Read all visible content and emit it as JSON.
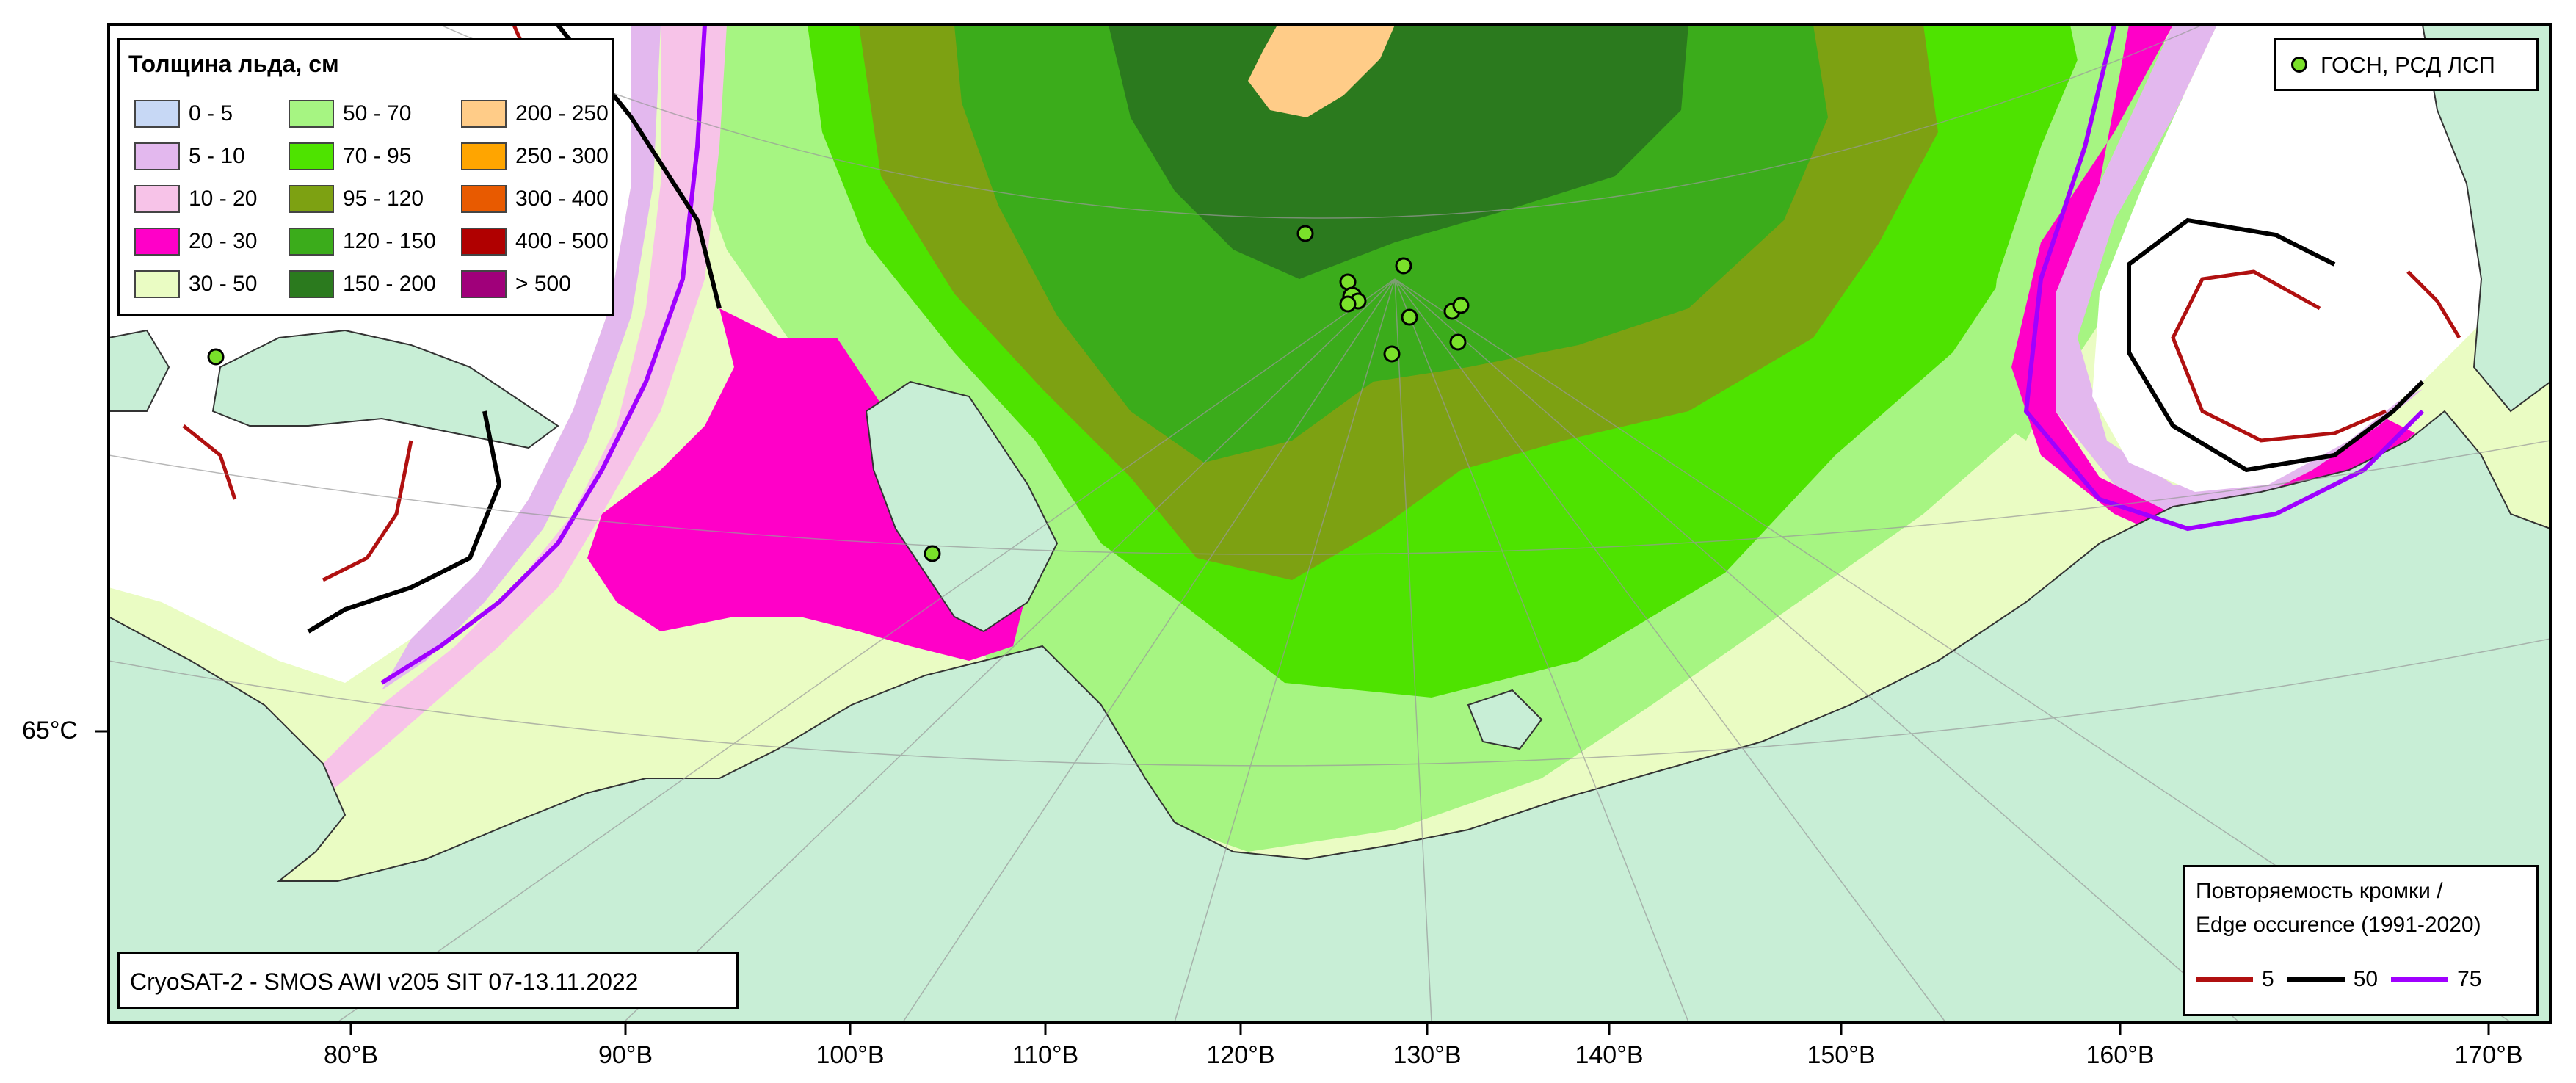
{
  "map": {
    "colors": {
      "land": "#c8eed6",
      "open_water": "#ffffff",
      "ice_0_5": "#c7d8f5",
      "ice_5_10": "#e3b8ee",
      "ice_10_20": "#f7c3e8",
      "ice_20_30": "#ff00c8",
      "ice_30_50": "#eafcc3",
      "ice_50_70": "#a6f582",
      "ice_70_95": "#4ee300",
      "ice_95_120": "#7da112",
      "ice_120_150": "#3bac1b",
      "ice_150_200": "#2b7a1e",
      "ice_200_250": "#ffcc88",
      "edge_5": "#b01010",
      "edge_50": "#000000",
      "edge_75": "#a000ff"
    }
  },
  "legend_thickness": {
    "title": "Толщина льда, см",
    "items": [
      {
        "label": "0 - 5",
        "color": "#c7d8f5"
      },
      {
        "label": "50 - 70",
        "color": "#a6f582"
      },
      {
        "label": "200 - 250",
        "color": "#ffcc88"
      },
      {
        "label": "5 - 10",
        "color": "#e3b8ee"
      },
      {
        "label": "70 - 95",
        "color": "#4ee300"
      },
      {
        "label": "250 - 300",
        "color": "#ffa500"
      },
      {
        "label": "10 - 20",
        "color": "#f7c3e8"
      },
      {
        "label": "95 - 120",
        "color": "#7da112"
      },
      {
        "label": "300 - 400",
        "color": "#e85a00"
      },
      {
        "label": "20 - 30",
        "color": "#ff00c8"
      },
      {
        "label": "120 - 150",
        "color": "#3bac1b"
      },
      {
        "label": "400 - 500",
        "color": "#b00000"
      },
      {
        "label": "30 - 50",
        "color": "#eafcc3"
      },
      {
        "label": "150 - 200",
        "color": "#2b7a1e"
      },
      {
        "label": "> 500",
        "color": "#a0007a"
      }
    ]
  },
  "legend_stations": {
    "label": "ГОСН, РСД ЛСП",
    "color": "#7ae02a"
  },
  "legend_edge": {
    "title_line1": "Повторяемость кромки /",
    "title_line2": "Edge occurence (1991-2020)",
    "items": [
      {
        "label": "5",
        "color": "#b01010"
      },
      {
        "label": "50",
        "color": "#000000"
      },
      {
        "label": "75",
        "color": "#a000ff"
      }
    ]
  },
  "source_label": "CryoSAT-2 - SMOS AWI v205 SIT 07-13.11.2022",
  "longitude_ticks": [
    "80°В",
    "90°В",
    "100°В",
    "110°В",
    "120°В",
    "130°В",
    "140°В",
    "150°В",
    "160°В",
    "170°В"
  ],
  "latitude_ticks": [
    "65°С"
  ]
}
